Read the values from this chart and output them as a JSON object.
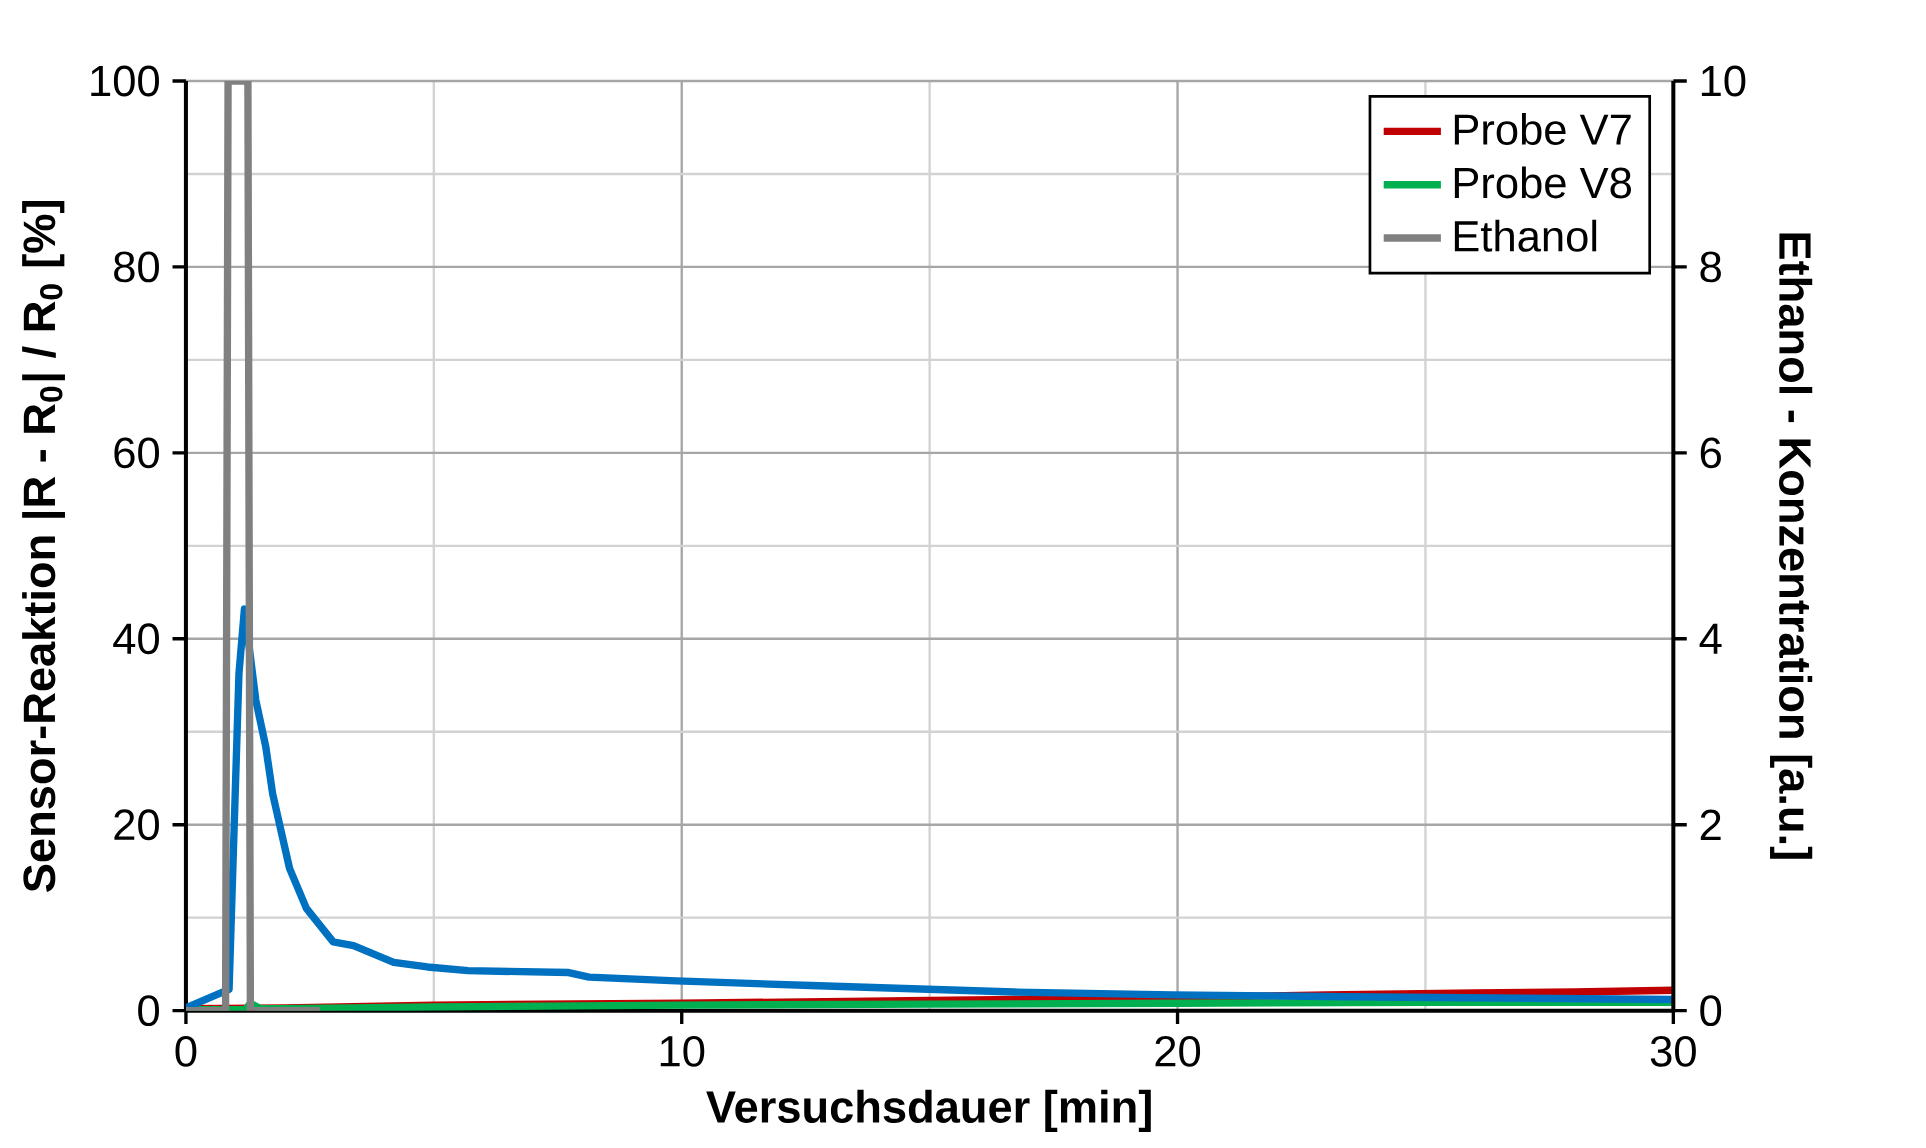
{
  "chart_data": {
    "type": "line",
    "xlabel": "Versuchsdauer [min]",
    "ylabel": "Sensor-Reaktion |R - R$_{0}$| / R$_{0}$ [%]",
    "y2label": "Ethanol - Konzentration [a.u.]",
    "xlim": [
      0,
      30
    ],
    "xticks": [
      0,
      10,
      20,
      30
    ],
    "ylim": [
      0,
      100
    ],
    "yticks": [
      0,
      20,
      40,
      60,
      80,
      100
    ],
    "y2lim": [
      0,
      10
    ],
    "y2ticks": [
      0,
      2,
      4,
      6,
      8,
      10
    ],
    "grid": true,
    "legend": "top right",
    "marker": "none",
    "line_style": "solid",
    "series": [
      {
        "name": "Probe V7",
        "color": "#c00000",
        "x": [
          0,
          2,
          5,
          10,
          15,
          20,
          23,
          26,
          28,
          30
        ],
        "values": [
          0.2,
          0.3,
          0.6,
          0.8,
          1.1,
          1.4,
          1.7,
          1.9,
          2.0,
          2.2
        ]
      },
      {
        "name": "Probe V8",
        "color": "#00b050",
        "x": [
          0,
          1.2,
          1.3,
          1.5,
          2,
          5,
          10,
          15,
          20,
          25,
          30
        ],
        "values": [
          0.1,
          0.1,
          0.8,
          0.2,
          0.2,
          0.4,
          0.6,
          0.7,
          0.8,
          0.9,
          0.9
        ]
      },
      {
        "color": "#0070c0",
        "x": [
          0,
          0.87,
          1.07,
          1.18,
          1.41,
          1.61,
          1.75,
          2.09,
          2.43,
          2.97,
          3.38,
          4.19,
          4.87,
          5.69,
          7.72,
          8.13,
          9.89,
          12.6,
          16.7,
          19.9,
          23.4,
          30
        ],
        "values": [
          0.3,
          2.3,
          36.3,
          43.2,
          33.4,
          28.4,
          23.3,
          15.3,
          11.0,
          7.4,
          7.0,
          5.2,
          4.7,
          4.3,
          4.1,
          3.6,
          3.2,
          2.7,
          2.0,
          1.7,
          1.5,
          1.2
        ]
      },
      {
        "name": "Ethanol",
        "color": "#808080",
        "axis": "y2",
        "x": [
          0,
          0.8,
          0.85,
          1.25,
          1.3,
          2.7
        ],
        "values": [
          0,
          0,
          10,
          10,
          0,
          0
        ]
      }
    ]
  }
}
